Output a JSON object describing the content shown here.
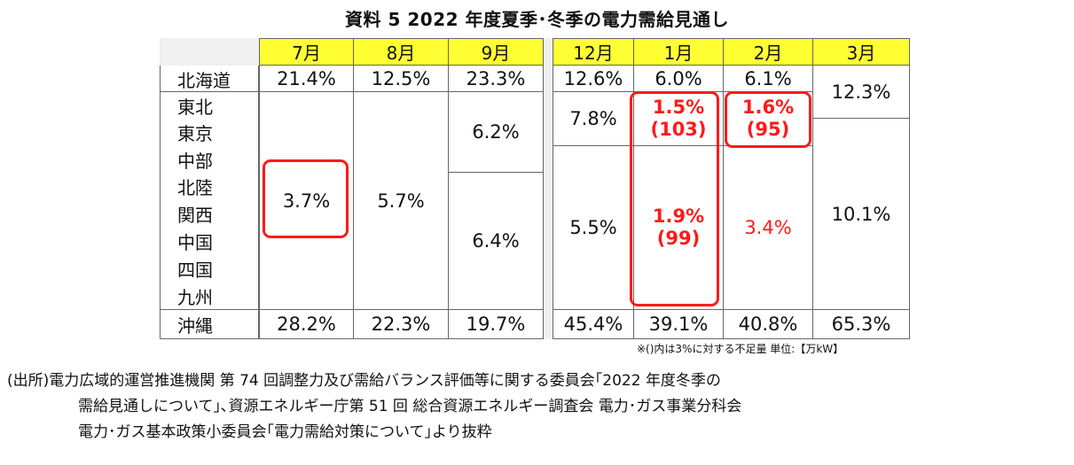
{
  "title": "資料 5 2022 年度夏季･冬季の電力需給見通し",
  "table": {
    "months": [
      "7月",
      "8月",
      "9月",
      "12月",
      "1月",
      "2月",
      "3月"
    ],
    "regions": [
      "北海道",
      "東北",
      "東京",
      "中部",
      "北陸",
      "関西",
      "中国",
      "四国",
      "九州",
      "沖縄"
    ],
    "hokkaido": [
      "21.4%",
      "12.5%",
      "23.3%",
      "12.6%",
      "6.0%",
      "6.1%"
    ],
    "okinawa": [
      "28.2%",
      "22.3%",
      "19.7%",
      "45.4%",
      "39.1%",
      "40.8%",
      "65.3%"
    ],
    "jul_mainland": "3.7%",
    "aug_mainland": "5.7%",
    "sep_east": "6.2%",
    "sep_west": "6.4%",
    "dec_east": "7.8%",
    "dec_west": "5.5%",
    "jan_east_pct": "1.5%",
    "jan_east_kw": "(103)",
    "jan_west_pct": "1.9%",
    "jan_west_kw": "(99)",
    "feb_east_pct": "1.6%",
    "feb_east_kw": "(95)",
    "feb_west": "3.4%",
    "mar_hokkaido_east": "12.3%",
    "mar_rest": "10.1%"
  },
  "note": "※()内は3%に対する不足量 単位:【万kW】",
  "source": {
    "line1": "(出所)電力広域的運営推進機関 第 74 回調整力及び需給バランス評価等に関する委員会｢2022 年度冬季の",
    "line2": "需給見通しについて｣､資源エネルギー庁第 51 回 総合資源エネルギー調査会 電力･ガス事業分科会",
    "line3": "電力･ガス基本政策小委員会｢電力需給対策について｣より抜粋"
  }
}
